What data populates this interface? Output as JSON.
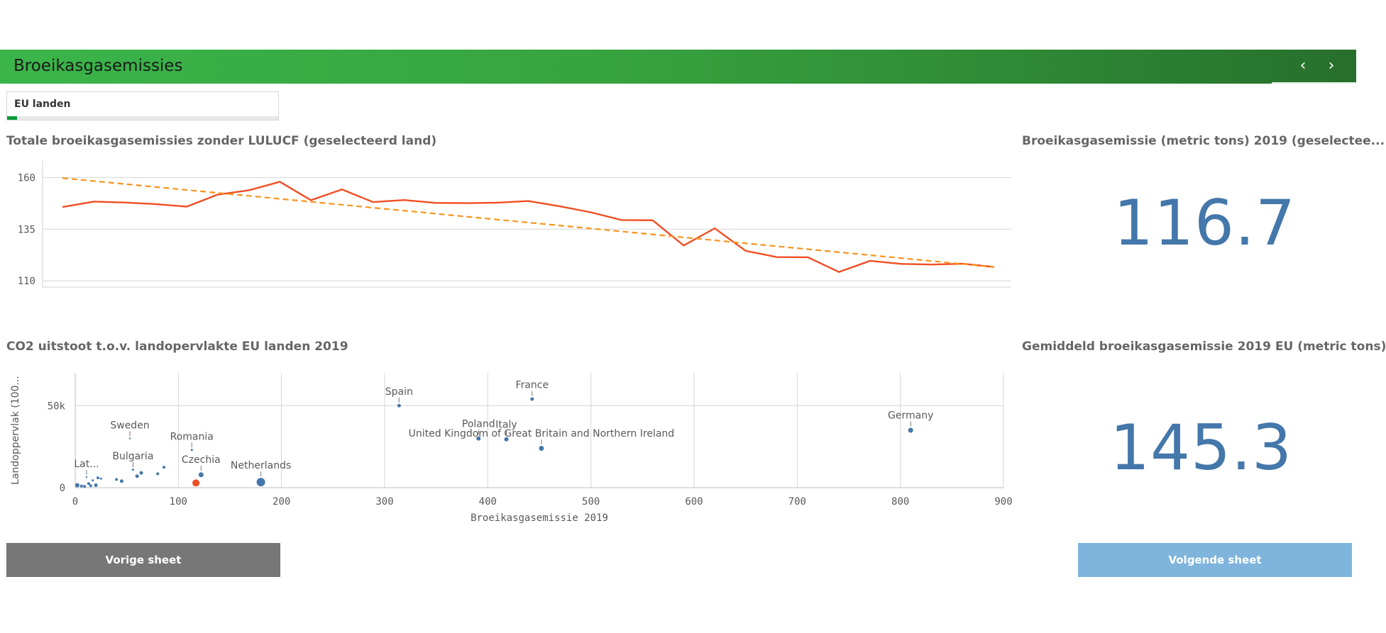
{
  "header": {
    "title": "Broeikasgasemissies",
    "prev_icon": "‹",
    "next_icon": "›"
  },
  "filter": {
    "label": "EU landen"
  },
  "line_panel": {
    "title": "Totale broeikasgasemissies zonder LULUCF (geselecteerd land)"
  },
  "kpi1": {
    "title": "Broeikasgasemissie (metric tons) 2019 (geselectee...",
    "value": "116.7"
  },
  "scatter_panel": {
    "title": "CO2 uitstoot t.o.v. landopervlakte EU landen 2019"
  },
  "kpi2": {
    "title": "Gemiddeld broeikasgasemissie 2019 EU (metric tons)",
    "value": "145.3"
  },
  "buttons": {
    "prev": "Vorige sheet",
    "next": "Volgende sheet"
  },
  "colors": {
    "line": "#f04e23",
    "trend": "#f7941d",
    "point": "#4477aa",
    "selected": "#f04e23",
    "prev_button": "#777777",
    "next_button": "#7fb5dc"
  },
  "chart_data": [
    {
      "type": "line",
      "ylim": [
        107,
        168
      ],
      "yticks": [
        "160",
        "135",
        "110"
      ],
      "series": [
        {
          "values": [
            145.7,
            148.3,
            147.9,
            147.1,
            145.9,
            151.7,
            153.8,
            157.9,
            149,
            154.2,
            148.1,
            149.1,
            147.7,
            147.6,
            147.8,
            148.6,
            146.1,
            143.2,
            139.4,
            139.3,
            127.1,
            135.4,
            124.5,
            121.5,
            121.4,
            114.3,
            119.7,
            118.2,
            117.9,
            118.3,
            116.7
          ]
        },
        {
          "values": [
            159.7,
            116.7
          ]
        }
      ]
    },
    {
      "type": "scatter",
      "xlabel": "Broeikasgasemissie 2019",
      "ylabel": "Landoppervlak (100...",
      "xlim": [
        0,
        900
      ],
      "ylim": [
        0,
        70000
      ],
      "xticks": [
        "0",
        "100",
        "200",
        "300",
        "400",
        "500",
        "600",
        "700",
        "800",
        "900"
      ],
      "yticks": [
        "50k",
        "0"
      ],
      "points": [
        {
          "name": "Germany",
          "x": 810,
          "y": 35000,
          "r": 3.5,
          "label": "Germany"
        },
        {
          "name": "France",
          "x": 443,
          "y": 54000,
          "r": 2.5,
          "label": "France"
        },
        {
          "name": "Spain",
          "x": 314,
          "y": 50000,
          "r": 2.5,
          "label": "Spain"
        },
        {
          "name": "Poland",
          "x": 391,
          "y": 30000,
          "r": 3,
          "label": "Poland"
        },
        {
          "name": "Italy",
          "x": 418,
          "y": 29500,
          "r": 3,
          "label": "Italy"
        },
        {
          "name": "United Kingdom of Great Britain and Northern Ireland",
          "x": 452,
          "y": 24000,
          "r": 3.5,
          "label": "United Kingdom of Great Britain and Northern Ireland"
        },
        {
          "name": "Netherlands",
          "x": 180,
          "y": 3400,
          "r": 6,
          "label": "Netherlands"
        },
        {
          "name": "Czechia",
          "x": 122,
          "y": 7900,
          "r": 3.5,
          "label": "Czechia"
        },
        {
          "name": "Romania",
          "x": 113,
          "y": 23000,
          "r": 1.5,
          "label": "Romania"
        },
        {
          "name": "Bulgaria",
          "x": 56,
          "y": 11000,
          "r": 1.5,
          "label": "Bulgaria"
        },
        {
          "name": "Sweden",
          "x": 53,
          "y": 30000,
          "r": 1.2,
          "label": "Sweden"
        },
        {
          "name": "Latvia",
          "x": 11,
          "y": 6500,
          "r": 1.2,
          "label": "Lat..."
        },
        {
          "name": "selected",
          "x": 117,
          "y": 2900,
          "r": 5,
          "label": "",
          "selected": true
        },
        {
          "name": "p1",
          "x": 2,
          "y": 1500,
          "r": 3,
          "label": ""
        },
        {
          "name": "p2",
          "x": 6,
          "y": 1000,
          "r": 2,
          "label": ""
        },
        {
          "name": "p3",
          "x": 9,
          "y": 800,
          "r": 2,
          "label": ""
        },
        {
          "name": "p4",
          "x": 13,
          "y": 2500,
          "r": 2,
          "label": ""
        },
        {
          "name": "p5",
          "x": 15,
          "y": 1200,
          "r": 2,
          "label": ""
        },
        {
          "name": "p6",
          "x": 17,
          "y": 4500,
          "r": 1.5,
          "label": ""
        },
        {
          "name": "p7",
          "x": 20,
          "y": 1500,
          "r": 2.5,
          "label": ""
        },
        {
          "name": "p8",
          "x": 22,
          "y": 6000,
          "r": 2,
          "label": ""
        },
        {
          "name": "p9",
          "x": 25,
          "y": 5500,
          "r": 1.5,
          "label": ""
        },
        {
          "name": "p10",
          "x": 40,
          "y": 5000,
          "r": 2,
          "label": ""
        },
        {
          "name": "p11",
          "x": 45,
          "y": 4000,
          "r": 2.5,
          "label": ""
        },
        {
          "name": "p12",
          "x": 60,
          "y": 7000,
          "r": 2.5,
          "label": ""
        },
        {
          "name": "p13",
          "x": 64,
          "y": 9000,
          "r": 2.5,
          "label": ""
        },
        {
          "name": "p14",
          "x": 80,
          "y": 8500,
          "r": 2,
          "label": ""
        },
        {
          "name": "p15",
          "x": 86,
          "y": 12500,
          "r": 2,
          "label": ""
        }
      ]
    }
  ]
}
